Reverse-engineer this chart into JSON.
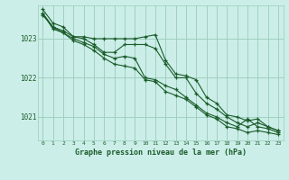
{
  "background_color": "#cceee8",
  "grid_color": "#99ccbb",
  "line_color": "#1a5c2a",
  "marker_color": "#1a5c2a",
  "xlabel": "Graphe pression niveau de la mer (hPa)",
  "xlim": [
    -0.5,
    23.5
  ],
  "ylim": [
    1020.4,
    1023.85
  ],
  "yticks": [
    1021,
    1022,
    1023
  ],
  "xticks": [
    0,
    1,
    2,
    3,
    4,
    5,
    6,
    7,
    8,
    9,
    10,
    11,
    12,
    13,
    14,
    15,
    16,
    17,
    18,
    19,
    20,
    21,
    22,
    23
  ],
  "series": [
    [
      1023.75,
      1023.4,
      1023.3,
      1023.05,
      1023.05,
      1023.0,
      1023.0,
      1023.0,
      1023.0,
      1023.0,
      1023.05,
      1023.1,
      1022.45,
      1022.1,
      1022.05,
      1021.95,
      1021.5,
      1021.35,
      1021.05,
      1021.0,
      1020.9,
      1020.95,
      1020.75,
      1020.65
    ],
    [
      1023.6,
      1023.3,
      1023.2,
      1023.05,
      1023.0,
      1022.85,
      1022.65,
      1022.65,
      1022.85,
      1022.85,
      1022.85,
      1022.75,
      1022.35,
      1022.0,
      1022.0,
      1021.6,
      1021.35,
      1021.2,
      1021.0,
      1020.85,
      1020.75,
      1020.85,
      1020.75,
      1020.65
    ],
    [
      1023.65,
      1023.3,
      1023.15,
      1023.0,
      1022.9,
      1022.8,
      1022.6,
      1022.5,
      1022.55,
      1022.5,
      1022.0,
      1021.95,
      1021.8,
      1021.7,
      1021.5,
      1021.3,
      1021.1,
      1021.0,
      1020.85,
      1020.75,
      1020.95,
      1020.75,
      1020.7,
      1020.6
    ],
    [
      1023.65,
      1023.25,
      1023.15,
      1022.95,
      1022.85,
      1022.7,
      1022.5,
      1022.35,
      1022.3,
      1022.25,
      1021.95,
      1021.9,
      1021.65,
      1021.55,
      1021.45,
      1021.25,
      1021.05,
      1020.95,
      1020.75,
      1020.7,
      1020.6,
      1020.65,
      1020.6,
      1020.55
    ]
  ]
}
